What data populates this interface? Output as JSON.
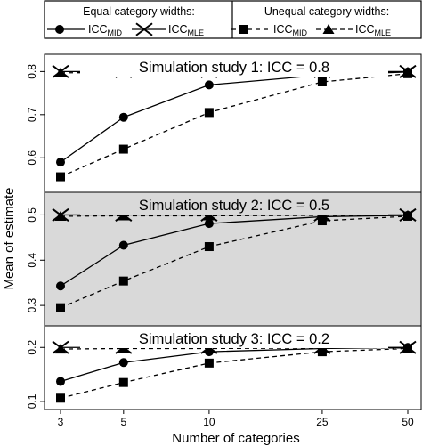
{
  "chart_data": {
    "type": "line",
    "xlabel": "Number of categories",
    "ylabel": "Mean of estimate",
    "x_scale": "log",
    "x": [
      3,
      5,
      10,
      25,
      50
    ],
    "x_tick_labels": [
      "3",
      "5",
      "10",
      "25",
      "50"
    ],
    "grid": false,
    "legend": {
      "placement": "top",
      "groups": [
        {
          "title": "Equal category widths:",
          "entries": [
            {
              "label": "ICC",
              "subscript": "MID",
              "line": "solid",
              "marker": "circle"
            },
            {
              "label": "ICC",
              "subscript": "MLE",
              "line": "solid",
              "marker": "cross"
            }
          ]
        },
        {
          "title": "Unequal category widths:",
          "entries": [
            {
              "label": "ICC",
              "subscript": "MID",
              "line": "dashed",
              "marker": "square"
            },
            {
              "label": "ICC",
              "subscript": "MLE",
              "line": "dashed",
              "marker": "triangle"
            }
          ]
        }
      ]
    },
    "panels": [
      {
        "title": "Simulation study 1: ICC = 0.8",
        "shaded": false,
        "ylim": [
          0.52,
          0.84
        ],
        "yticks": [
          0.6,
          0.7,
          0.8
        ],
        "ytick_labels": [
          "0.6",
          "0.7",
          "0.8"
        ],
        "series": [
          {
            "line": "solid",
            "marker": "circle",
            "values": [
              0.59,
              0.694,
              0.769,
              0.792,
              0.799
            ]
          },
          {
            "line": "solid",
            "marker": "cross",
            "values": [
              0.8,
              0.8,
              0.8,
              0.8,
              0.8
            ]
          },
          {
            "line": "dashed",
            "marker": "square",
            "values": [
              0.556,
              0.62,
              0.705,
              0.776,
              0.795
            ]
          },
          {
            "line": "dashed",
            "marker": "triangle",
            "values": [
              0.797,
              0.798,
              0.798,
              0.798,
              0.799
            ]
          }
        ]
      },
      {
        "title": "Simulation study 2: ICC = 0.5",
        "shaded": true,
        "ylim": [
          0.255,
          0.55
        ],
        "yticks": [
          0.3,
          0.4,
          0.5
        ],
        "ytick_labels": [
          "0.3",
          "0.4",
          "0.5"
        ],
        "series": [
          {
            "line": "solid",
            "marker": "circle",
            "values": [
              0.343,
              0.433,
              0.481,
              0.496,
              0.499
            ]
          },
          {
            "line": "solid",
            "marker": "cross",
            "values": [
              0.5,
              0.5,
              0.5,
              0.5,
              0.5
            ]
          },
          {
            "line": "dashed",
            "marker": "square",
            "values": [
              0.295,
              0.354,
              0.43,
              0.487,
              0.497
            ]
          },
          {
            "line": "dashed",
            "marker": "triangle",
            "values": [
              0.497,
              0.498,
              0.498,
              0.499,
              0.499
            ]
          }
        ]
      },
      {
        "title": "Simulation study 3: ICC = 0.2",
        "shaded": false,
        "ylim": [
          0.085,
          0.24
        ],
        "yticks": [
          0.1,
          0.2
        ],
        "ytick_labels": [
          "0.1",
          "0.2"
        ],
        "series": [
          {
            "line": "solid",
            "marker": "circle",
            "values": [
              0.137,
              0.172,
              0.192,
              0.198,
              0.2
            ]
          },
          {
            "line": "solid",
            "marker": "cross",
            "values": [
              0.2,
              0.2,
              0.2,
              0.2,
              0.2
            ]
          },
          {
            "line": "dashed",
            "marker": "square",
            "values": [
              0.106,
              0.135,
              0.171,
              0.192,
              0.198
            ]
          },
          {
            "line": "dashed",
            "marker": "triangle",
            "values": [
              0.197,
              0.198,
              0.198,
              0.199,
              0.199
            ]
          }
        ]
      }
    ]
  }
}
